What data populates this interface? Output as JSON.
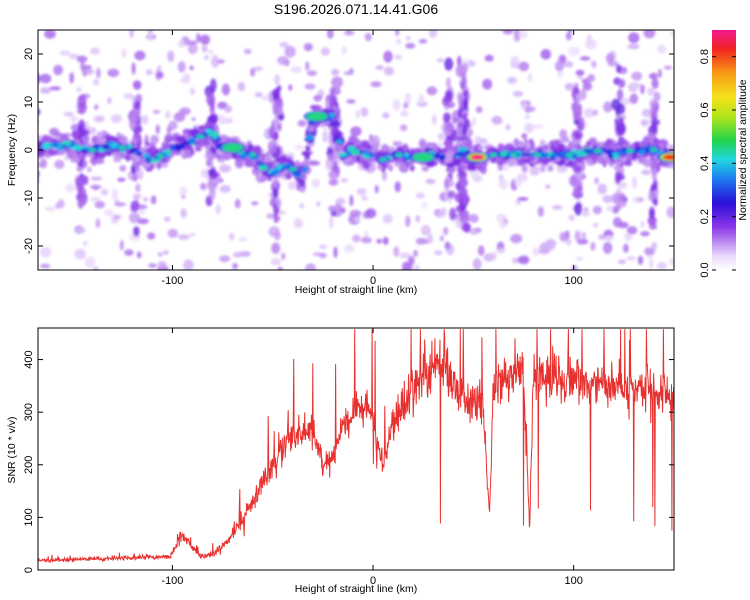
{
  "figure_title": "S196.2026.071.14.41.G06",
  "chart_data": [
    {
      "type": "heatmap",
      "title": "S196.2026.071.14.41.G06",
      "xlabel": "Height of straight line (km)",
      "ylabel": "Frequency (Hz)",
      "xlim": [
        -167,
        150
      ],
      "ylim": [
        -25,
        25
      ],
      "xticks": [
        -100,
        0,
        100
      ],
      "yticks": [
        -20,
        -10,
        0,
        10,
        20
      ],
      "colorbar": {
        "label": "Normalized spectral amplitude",
        "range": [
          0,
          0.9
        ],
        "ticks": [
          0.0,
          0.2,
          0.4,
          0.6,
          0.8
        ]
      },
      "ridge": {
        "description": "frequency of dominant spectral ridge vs height",
        "x": [
          -160,
          -150,
          -140,
          -130,
          -120,
          -110,
          -100,
          -90,
          -80,
          -75,
          -70,
          -65,
          -60,
          -55,
          -50,
          -45,
          -40,
          -35,
          -30,
          -25,
          -20,
          -15,
          -10,
          -5,
          0,
          5,
          10,
          15,
          20,
          25,
          30,
          35,
          40,
          45,
          50,
          55,
          60,
          70,
          80,
          90,
          100,
          110,
          120,
          130,
          140,
          148
        ],
        "freq": [
          1,
          1,
          0,
          1,
          0,
          -2,
          0,
          2,
          4,
          0,
          1,
          -1,
          -1,
          -3,
          -5,
          -3,
          -4,
          -6,
          6,
          7,
          7,
          -1,
          0,
          -1,
          -1,
          -2,
          -1,
          -1,
          -2,
          -1,
          -1,
          -2,
          -2,
          0,
          -2,
          -2,
          -1,
          -1,
          -1,
          -1,
          -1,
          0,
          -1,
          0,
          0,
          -1
        ]
      },
      "hotspots": [
        {
          "x": 52,
          "freq": -1.5,
          "amp": 0.88
        },
        {
          "x": 148,
          "freq": -1.5,
          "amp": 0.85
        },
        {
          "x": -28,
          "freq": 7,
          "amp": 0.55
        },
        {
          "x": -70,
          "freq": 0.5,
          "amp": 0.5
        },
        {
          "x": 25,
          "freq": -1.5,
          "amp": 0.5
        }
      ]
    },
    {
      "type": "line",
      "xlabel": "Height of straight line (km)",
      "ylabel": "SNR (10 * v/v)",
      "xlim": [
        -167,
        150
      ],
      "ylim": [
        0,
        460
      ],
      "xticks": [
        -100,
        0,
        100
      ],
      "yticks": [
        0,
        100,
        200,
        300,
        400
      ],
      "series": [
        {
          "name": "SNR",
          "color": "#e8312f",
          "x": [
            -167,
            -150,
            -130,
            -110,
            -101,
            -95,
            -90,
            -85,
            -80,
            -75,
            -70,
            -65,
            -60,
            -55,
            -50,
            -45,
            -40,
            -35,
            -30,
            -25,
            -20,
            -15,
            -10,
            -5,
            0,
            5,
            10,
            15,
            20,
            25,
            28,
            30,
            35,
            40,
            45,
            50,
            55,
            58,
            60,
            65,
            70,
            75,
            78,
            80,
            85,
            90,
            95,
            100,
            105,
            110,
            115,
            120,
            125,
            130,
            135,
            140,
            145,
            150
          ],
          "y": [
            18,
            20,
            22,
            24,
            25,
            70,
            40,
            25,
            30,
            45,
            70,
            95,
            130,
            170,
            200,
            230,
            250,
            270,
            260,
            200,
            210,
            280,
            300,
            310,
            290,
            200,
            280,
            320,
            340,
            370,
            360,
            400,
            390,
            350,
            330,
            320,
            310,
            100,
            350,
            350,
            370,
            380,
            80,
            380,
            370,
            370,
            360,
            370,
            360,
            350,
            350,
            350,
            345,
            340,
            345,
            340,
            330,
            330
          ]
        }
      ]
    }
  ]
}
